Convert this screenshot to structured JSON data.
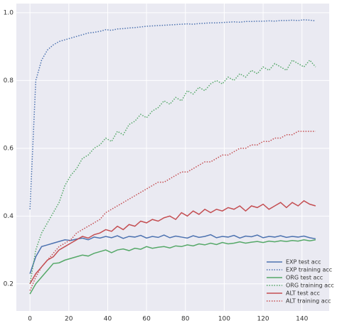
{
  "chart_data": {
    "type": "line",
    "x": [
      0,
      3,
      6,
      9,
      12,
      15,
      18,
      21,
      24,
      27,
      30,
      33,
      36,
      39,
      42,
      45,
      48,
      51,
      54,
      57,
      60,
      63,
      66,
      69,
      72,
      75,
      78,
      81,
      84,
      87,
      90,
      93,
      96,
      99,
      102,
      105,
      108,
      111,
      114,
      117,
      120,
      123,
      126,
      129,
      132,
      135,
      138,
      141,
      144,
      147
    ],
    "xlim": [
      -7,
      154
    ],
    "xticks": [
      0,
      20,
      40,
      60,
      80,
      100,
      120,
      140
    ],
    "ylim": [
      0.12,
      1.027
    ],
    "yticks": [
      0.2,
      0.4,
      0.6,
      0.8,
      {
        "value": 1.0,
        "label": "1.0"
      }
    ],
    "grid": true,
    "legend": "lower right",
    "series": [
      {
        "name": "EXP test acc",
        "color": "#4c72b0",
        "linestyle": "solid",
        "values": [
          0.23,
          0.28,
          0.31,
          0.315,
          0.32,
          0.325,
          0.33,
          0.328,
          0.332,
          0.335,
          0.33,
          0.338,
          0.335,
          0.34,
          0.336,
          0.342,
          0.334,
          0.34,
          0.338,
          0.343,
          0.335,
          0.34,
          0.337,
          0.344,
          0.336,
          0.341,
          0.338,
          0.335,
          0.342,
          0.337,
          0.34,
          0.345,
          0.336,
          0.34,
          0.338,
          0.343,
          0.335,
          0.341,
          0.339,
          0.344,
          0.336,
          0.34,
          0.338,
          0.342,
          0.337,
          0.34,
          0.338,
          0.341,
          0.336,
          0.333
        ]
      },
      {
        "name": "EXP training acc",
        "color": "#4c72b0",
        "linestyle": "dotted",
        "values": [
          0.42,
          0.8,
          0.86,
          0.89,
          0.905,
          0.915,
          0.92,
          0.925,
          0.93,
          0.935,
          0.94,
          0.942,
          0.945,
          0.95,
          0.948,
          0.952,
          0.953,
          0.955,
          0.956,
          0.958,
          0.96,
          0.961,
          0.962,
          0.963,
          0.964,
          0.965,
          0.966,
          0.967,
          0.966,
          0.968,
          0.969,
          0.97,
          0.97,
          0.971,
          0.972,
          0.973,
          0.972,
          0.974,
          0.974,
          0.975,
          0.975,
          0.976,
          0.975,
          0.977,
          0.977,
          0.978,
          0.977,
          0.979,
          0.978,
          0.976
        ]
      },
      {
        "name": "ORG test acc",
        "color": "#55a868",
        "linestyle": "solid",
        "values": [
          0.17,
          0.2,
          0.22,
          0.24,
          0.26,
          0.262,
          0.27,
          0.275,
          0.28,
          0.285,
          0.282,
          0.29,
          0.295,
          0.3,
          0.292,
          0.3,
          0.303,
          0.298,
          0.305,
          0.302,
          0.31,
          0.305,
          0.308,
          0.31,
          0.306,
          0.312,
          0.31,
          0.315,
          0.312,
          0.318,
          0.315,
          0.32,
          0.316,
          0.322,
          0.318,
          0.32,
          0.324,
          0.32,
          0.323,
          0.325,
          0.322,
          0.326,
          0.324,
          0.327,
          0.325,
          0.328,
          0.326,
          0.33,
          0.327,
          0.33
        ]
      },
      {
        "name": "ORG training acc",
        "color": "#55a868",
        "linestyle": "dotted",
        "values": [
          0.2,
          0.3,
          0.35,
          0.38,
          0.41,
          0.44,
          0.49,
          0.52,
          0.54,
          0.57,
          0.58,
          0.6,
          0.61,
          0.63,
          0.62,
          0.65,
          0.64,
          0.67,
          0.68,
          0.7,
          0.69,
          0.71,
          0.72,
          0.74,
          0.73,
          0.75,
          0.74,
          0.77,
          0.76,
          0.78,
          0.77,
          0.79,
          0.8,
          0.79,
          0.81,
          0.8,
          0.82,
          0.81,
          0.83,
          0.82,
          0.84,
          0.83,
          0.85,
          0.84,
          0.83,
          0.86,
          0.85,
          0.84,
          0.86,
          0.84
        ]
      },
      {
        "name": "ALT test acc",
        "color": "#c44e52",
        "linestyle": "solid",
        "values": [
          0.2,
          0.23,
          0.25,
          0.27,
          0.28,
          0.3,
          0.31,
          0.32,
          0.33,
          0.34,
          0.335,
          0.345,
          0.35,
          0.36,
          0.355,
          0.37,
          0.36,
          0.375,
          0.37,
          0.385,
          0.38,
          0.39,
          0.385,
          0.395,
          0.4,
          0.39,
          0.41,
          0.4,
          0.415,
          0.405,
          0.42,
          0.41,
          0.42,
          0.415,
          0.425,
          0.42,
          0.43,
          0.415,
          0.43,
          0.425,
          0.435,
          0.42,
          0.43,
          0.44,
          0.425,
          0.44,
          0.43,
          0.445,
          0.435,
          0.43
        ]
      },
      {
        "name": "ALT training acc",
        "color": "#c44e52",
        "linestyle": "dotted",
        "values": [
          0.18,
          0.22,
          0.25,
          0.27,
          0.29,
          0.31,
          0.32,
          0.33,
          0.35,
          0.36,
          0.37,
          0.38,
          0.39,
          0.41,
          0.42,
          0.43,
          0.44,
          0.45,
          0.46,
          0.47,
          0.48,
          0.49,
          0.5,
          0.5,
          0.51,
          0.52,
          0.53,
          0.53,
          0.54,
          0.55,
          0.56,
          0.56,
          0.57,
          0.58,
          0.58,
          0.59,
          0.6,
          0.6,
          0.61,
          0.61,
          0.62,
          0.62,
          0.63,
          0.63,
          0.64,
          0.64,
          0.65,
          0.65,
          0.65,
          0.65
        ]
      }
    ]
  }
}
